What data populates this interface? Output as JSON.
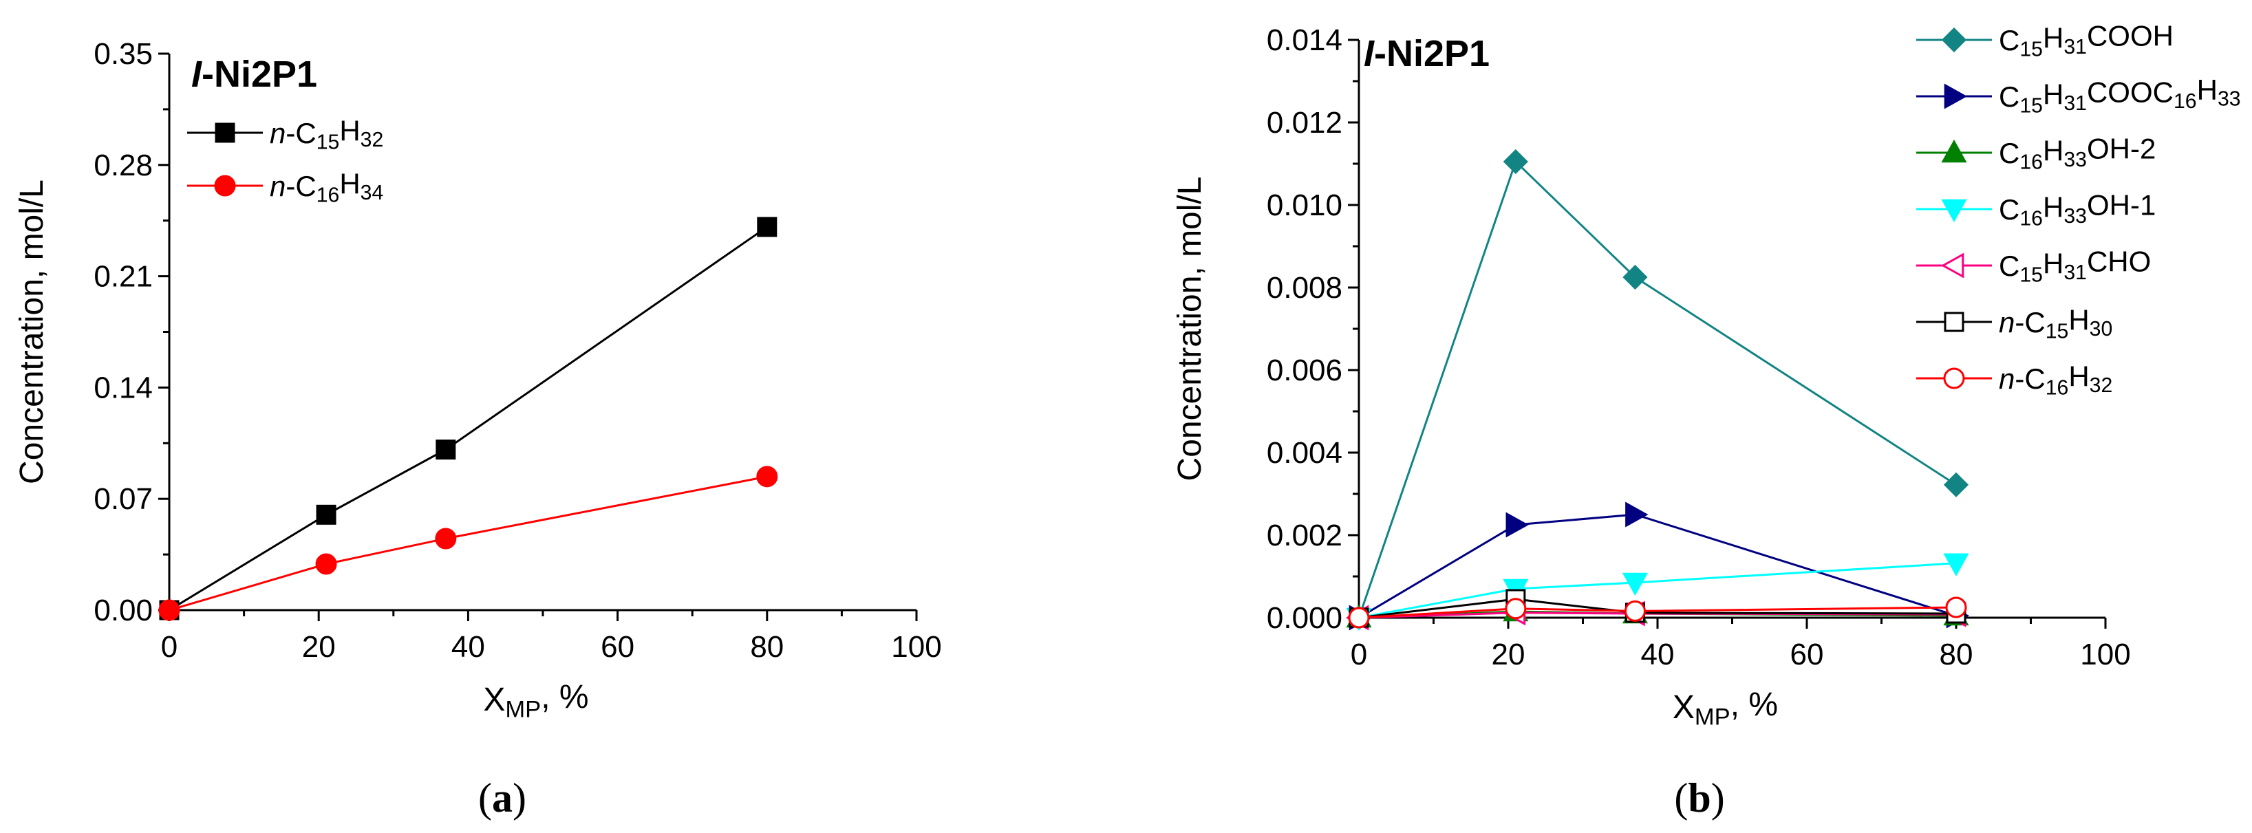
{
  "chart_data": [
    {
      "id": "a",
      "type": "line",
      "title_italic": "I",
      "title_rest": "-Ni2P1",
      "caption": "(a)",
      "caption_letter": "a",
      "xlabel_main": "X",
      "xlabel_sub": "MP",
      "xlabel_tail": ", %",
      "ylabel": "Concentration, mol/L",
      "xlim": [
        0,
        100
      ],
      "ylim": [
        0,
        0.35
      ],
      "xticks": [
        0,
        20,
        40,
        60,
        80,
        100
      ],
      "yticks": [
        0.0,
        0.07,
        0.14,
        0.21,
        0.28,
        0.35
      ],
      "ytick_labels": [
        "0.00",
        "0.07",
        "0.14",
        "0.21",
        "0.28",
        "0.35"
      ],
      "grid": false,
      "legend_position": "top-left",
      "series": [
        {
          "name": "n-C15H32",
          "label_parts": [
            [
              "n",
              "i"
            ],
            [
              "-C",
              "n"
            ],
            [
              "15",
              "sub"
            ],
            [
              "H",
              "n"
            ],
            [
              "32",
              "sub"
            ]
          ],
          "color": "#000000",
          "marker": "square-filled",
          "x": [
            0,
            21,
            37,
            80
          ],
          "y": [
            0.0,
            0.06,
            0.101,
            0.241
          ]
        },
        {
          "name": "n-C16H34",
          "label_parts": [
            [
              "n",
              "i"
            ],
            [
              "-C",
              "n"
            ],
            [
              "16",
              "sub"
            ],
            [
              "H",
              "n"
            ],
            [
              "34",
              "sub"
            ]
          ],
          "color": "#ff0000",
          "marker": "circle-filled",
          "x": [
            0,
            21,
            37,
            80
          ],
          "y": [
            0.0,
            0.029,
            0.045,
            0.084
          ]
        }
      ]
    },
    {
      "id": "b",
      "type": "line",
      "title_italic": "I",
      "title_rest": "-Ni2P1",
      "caption": "(b)",
      "caption_letter": "b",
      "xlabel_main": "X",
      "xlabel_sub": "MP",
      "xlabel_tail": ", %",
      "ylabel": "Concentration, mol/L",
      "xlim": [
        0,
        100
      ],
      "ylim": [
        0,
        0.014
      ],
      "xticks": [
        0,
        20,
        40,
        60,
        80,
        100
      ],
      "yticks": [
        0.0,
        0.002,
        0.004,
        0.006,
        0.008,
        0.01,
        0.012,
        0.014
      ],
      "ytick_labels": [
        "0.000",
        "0.002",
        "0.004",
        "0.006",
        "0.008",
        "0.010",
        "0.012",
        "0.014"
      ],
      "grid": false,
      "legend_position": "top-right",
      "series": [
        {
          "name": "C15H31COOH",
          "label_parts": [
            [
              "C",
              "n"
            ],
            [
              "15",
              "sub"
            ],
            [
              "H",
              "n"
            ],
            [
              "31",
              "sub"
            ],
            [
              "COOH",
              "n"
            ]
          ],
          "color": "#138484",
          "marker": "diamond-filled",
          "x": [
            0,
            21,
            37,
            80
          ],
          "y": [
            0.0,
            0.01105,
            0.00825,
            0.00322
          ]
        },
        {
          "name": "C15H31COOC16H33",
          "label_parts": [
            [
              "C",
              "n"
            ],
            [
              "15",
              "sub"
            ],
            [
              "H",
              "n"
            ],
            [
              "31",
              "sub"
            ],
            [
              "COOC",
              "n"
            ],
            [
              "16",
              "sub"
            ],
            [
              "H",
              "n"
            ],
            [
              "33",
              "sub"
            ]
          ],
          "color": "#000080",
          "marker": "triangle-right-filled",
          "x": [
            0,
            21,
            37,
            80
          ],
          "y": [
            0.0,
            0.00225,
            0.0025,
            5e-05
          ]
        },
        {
          "name": "C16H33OH-2",
          "label_parts": [
            [
              "C",
              "n"
            ],
            [
              "16",
              "sub"
            ],
            [
              "H",
              "n"
            ],
            [
              "33",
              "sub"
            ],
            [
              "OH-2",
              "n"
            ]
          ],
          "color": "#008000",
          "marker": "triangle-up-filled",
          "x": [
            0,
            21,
            37,
            80
          ],
          "y": [
            0.0,
            0.00015,
            0.0001,
            5e-05
          ]
        },
        {
          "name": "C16H33OH-1",
          "label_parts": [
            [
              "C",
              "n"
            ],
            [
              "16",
              "sub"
            ],
            [
              "H",
              "n"
            ],
            [
              "33",
              "sub"
            ],
            [
              "OH-1",
              "n"
            ]
          ],
          "color": "#00ffff",
          "marker": "triangle-down-filled",
          "x": [
            0,
            21,
            37,
            80
          ],
          "y": [
            0.0,
            0.0007,
            0.00085,
            0.00132
          ]
        },
        {
          "name": "C15H31CHO",
          "label_parts": [
            [
              "C",
              "n"
            ],
            [
              "15",
              "sub"
            ],
            [
              "H",
              "n"
            ],
            [
              "31",
              "sub"
            ],
            [
              "CHO",
              "n"
            ]
          ],
          "color": "#ff0080",
          "marker": "triangle-left-open",
          "x": [
            0,
            21,
            37,
            80
          ],
          "y": [
            0.0,
            0.00012,
            0.0001,
            8e-05
          ]
        },
        {
          "name": "n-C15H30",
          "label_parts": [
            [
              "n",
              "i"
            ],
            [
              "-C",
              "n"
            ],
            [
              "15",
              "sub"
            ],
            [
              "H",
              "n"
            ],
            [
              "30",
              "sub"
            ]
          ],
          "color": "#000000",
          "marker": "square-open",
          "x": [
            0,
            21,
            37,
            80
          ],
          "y": [
            0.0,
            0.00045,
            0.00012,
            0.0001
          ]
        },
        {
          "name": "n-C16H32",
          "label_parts": [
            [
              "n",
              "i"
            ],
            [
              "-C",
              "n"
            ],
            [
              "16",
              "sub"
            ],
            [
              "H",
              "n"
            ],
            [
              "32",
              "sub"
            ]
          ],
          "color": "#ff0000",
          "marker": "circle-open",
          "x": [
            0,
            21,
            37,
            80
          ],
          "y": [
            0.0,
            0.00022,
            0.00016,
            0.00025
          ]
        }
      ]
    }
  ]
}
